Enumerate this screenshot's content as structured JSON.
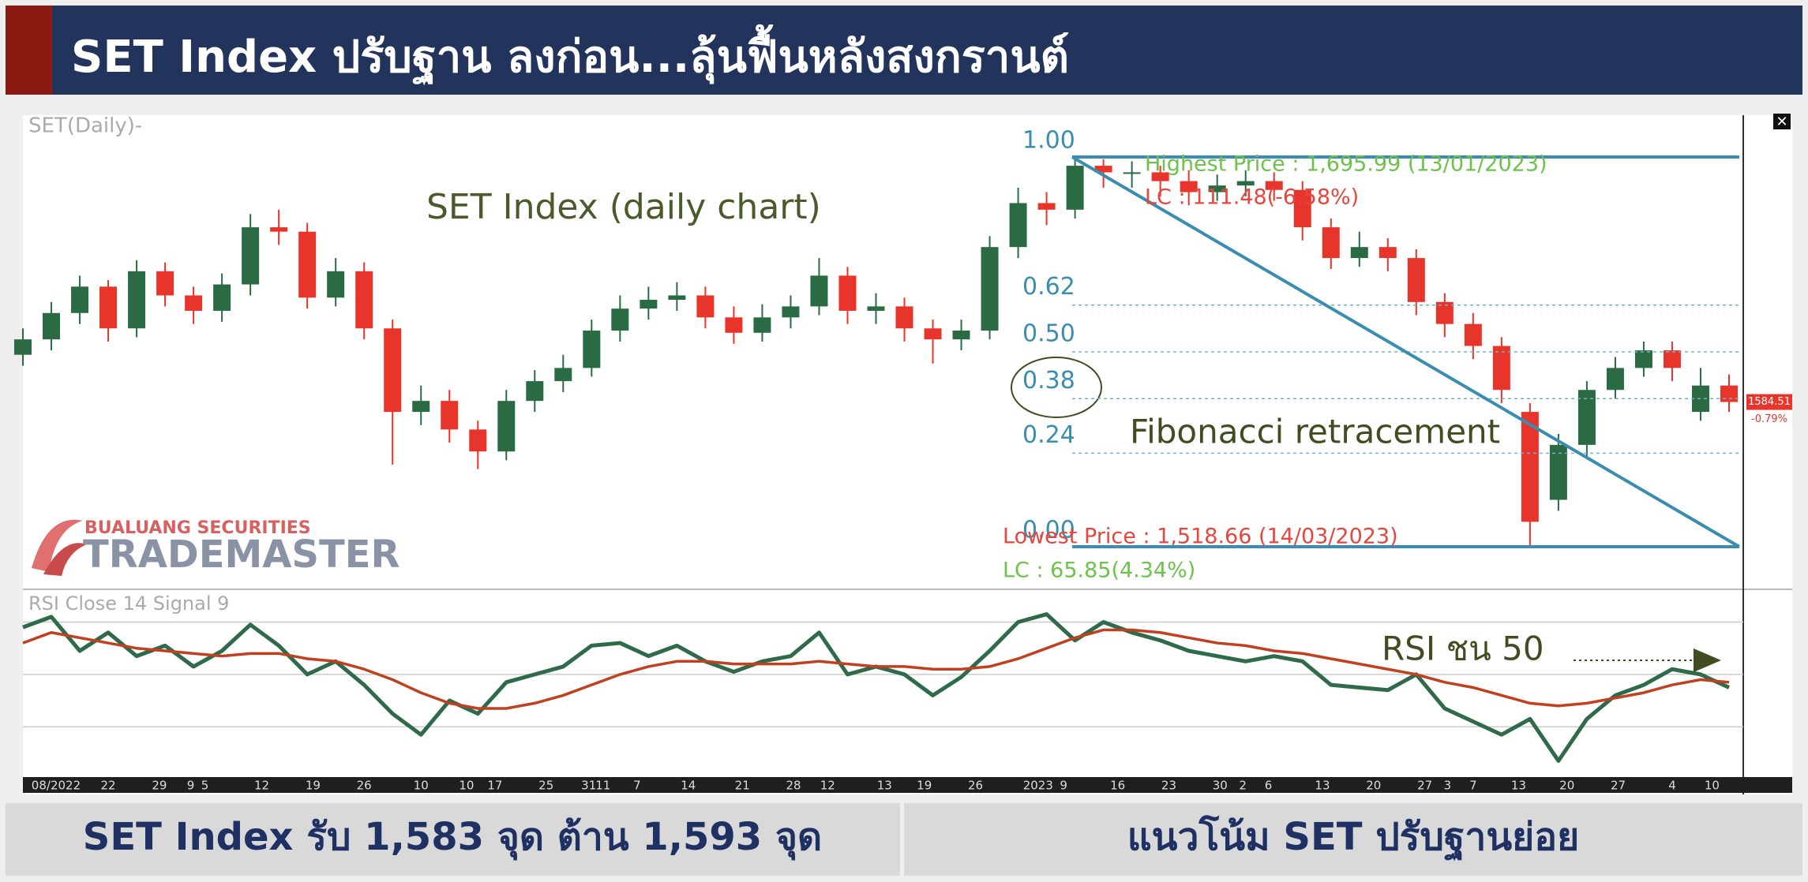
{
  "header": {
    "title": "SET Index ปรับฐาน ลงก่อน...ลุ้นฟื้นหลังสงกรานต์"
  },
  "chart_data": [
    {
      "type": "candlestick",
      "title": "SET(Daily)-",
      "annotation": "SET Index (daily chart)",
      "fib_title": "Fibonacci retracement",
      "up_color": "#2a6b43",
      "down_color": "#e8352b",
      "ylim": [
        1500,
        1715
      ],
      "highest": {
        "value": 1695.99,
        "label": "Highest Price : 1,695.99 (13/01/2023)"
      },
      "highest_lc": "LC : 111.48(-6.58%)",
      "lowest": {
        "value": 1518.66,
        "label": "Lowest Price : 1,518.66 (14/03/2023)"
      },
      "lowest_lc": "LC : 65.85(4.34%)",
      "fib_levels": [
        {
          "value": 1,
          "label": "1.00"
        },
        {
          "value": 0.62,
          "label": "0.62"
        },
        {
          "value": 0.5,
          "label": "0.50"
        },
        {
          "value": 0.38,
          "label": "0.38"
        },
        {
          "value": 0.24,
          "label": "0.24"
        },
        {
          "value": 0,
          "label": "0.00"
        }
      ],
      "last_price": 1584.51,
      "last_change": {
        "value": -0.79,
        "label": "-0.79%"
      },
      "candles": [
        [
          1606,
          1618,
          1601,
          1613
        ],
        [
          1613,
          1630,
          1608,
          1625
        ],
        [
          1625,
          1642,
          1620,
          1637
        ],
        [
          1637,
          1640,
          1612,
          1618
        ],
        [
          1618,
          1649,
          1614,
          1644
        ],
        [
          1644,
          1648,
          1628,
          1633
        ],
        [
          1633,
          1637,
          1620,
          1626
        ],
        [
          1626,
          1643,
          1621,
          1638
        ],
        [
          1638,
          1670,
          1633,
          1664
        ],
        [
          1664,
          1672,
          1656,
          1662
        ],
        [
          1662,
          1666,
          1627,
          1632
        ],
        [
          1632,
          1650,
          1628,
          1644
        ],
        [
          1644,
          1648,
          1613,
          1618
        ],
        [
          1618,
          1622,
          1556,
          1580
        ],
        [
          1580,
          1592,
          1574,
          1585
        ],
        [
          1585,
          1590,
          1566,
          1572
        ],
        [
          1572,
          1576,
          1554,
          1562
        ],
        [
          1562,
          1590,
          1558,
          1585
        ],
        [
          1585,
          1599,
          1580,
          1594
        ],
        [
          1594,
          1606,
          1589,
          1600
        ],
        [
          1600,
          1622,
          1596,
          1617
        ],
        [
          1617,
          1633,
          1612,
          1627
        ],
        [
          1627,
          1637,
          1622,
          1631
        ],
        [
          1631,
          1639,
          1626,
          1633
        ],
        [
          1633,
          1637,
          1618,
          1623
        ],
        [
          1623,
          1628,
          1611,
          1616
        ],
        [
          1616,
          1629,
          1612,
          1623
        ],
        [
          1623,
          1633,
          1618,
          1628
        ],
        [
          1628,
          1650,
          1624,
          1642
        ],
        [
          1642,
          1646,
          1620,
          1626
        ],
        [
          1626,
          1634,
          1620,
          1628
        ],
        [
          1628,
          1632,
          1612,
          1618
        ],
        [
          1618,
          1622,
          1602,
          1613
        ],
        [
          1613,
          1622,
          1608,
          1617
        ],
        [
          1617,
          1660,
          1613,
          1655
        ],
        [
          1655,
          1682,
          1650,
          1675
        ],
        [
          1675,
          1680,
          1665,
          1672
        ],
        [
          1672,
          1695.99,
          1668,
          1692
        ],
        [
          1692,
          1695,
          1682,
          1689
        ],
        [
          1689,
          1694,
          1682,
          1689
        ],
        [
          1689,
          1692,
          1678,
          1685
        ],
        [
          1685,
          1690,
          1674,
          1680
        ],
        [
          1680,
          1688,
          1676,
          1683
        ],
        [
          1683,
          1690,
          1678,
          1685
        ],
        [
          1685,
          1689,
          1676,
          1681
        ],
        [
          1681,
          1685,
          1658,
          1664
        ],
        [
          1664,
          1668,
          1645,
          1650
        ],
        [
          1650,
          1662,
          1646,
          1655
        ],
        [
          1655,
          1659,
          1644,
          1650
        ],
        [
          1650,
          1654,
          1624,
          1630
        ],
        [
          1630,
          1634,
          1614,
          1620
        ],
        [
          1620,
          1625,
          1604,
          1610
        ],
        [
          1610,
          1614,
          1584,
          1590
        ],
        [
          1580,
          1584,
          1518.66,
          1530
        ],
        [
          1540,
          1570,
          1535,
          1565
        ],
        [
          1565,
          1594,
          1560,
          1590
        ],
        [
          1590,
          1605,
          1586,
          1600
        ],
        [
          1600,
          1612,
          1596,
          1608
        ],
        [
          1608,
          1612,
          1594,
          1600
        ],
        [
          1580,
          1600,
          1576,
          1592
        ],
        [
          1592,
          1597,
          1580,
          1584.51
        ]
      ],
      "xticks": [
        {
          "value": 0.3,
          "label": "08/2022"
        },
        {
          "value": 3,
          "label": "22"
        },
        {
          "value": 4.8,
          "label": "29"
        },
        {
          "value": 5.9,
          "label": "9"
        },
        {
          "value": 6.4,
          "label": "5"
        },
        {
          "value": 8.4,
          "label": "12"
        },
        {
          "value": 10.2,
          "label": "19"
        },
        {
          "value": 12,
          "label": "26"
        },
        {
          "value": 14,
          "label": "10"
        },
        {
          "value": 15.6,
          "label": "10"
        },
        {
          "value": 16.6,
          "label": "17"
        },
        {
          "value": 18.4,
          "label": "25"
        },
        {
          "value": 19.9,
          "label": "31"
        },
        {
          "value": 20.4,
          "label": "11"
        },
        {
          "value": 21.6,
          "label": "7"
        },
        {
          "value": 23.4,
          "label": "14"
        },
        {
          "value": 25.3,
          "label": "21"
        },
        {
          "value": 27.1,
          "label": "28"
        },
        {
          "value": 28.3,
          "label": "12"
        },
        {
          "value": 30.3,
          "label": "13"
        },
        {
          "value": 31.7,
          "label": "19"
        },
        {
          "value": 33.5,
          "label": "26"
        },
        {
          "value": 35.7,
          "label": "2023"
        },
        {
          "value": 36.6,
          "label": "9"
        },
        {
          "value": 38.5,
          "label": "16"
        },
        {
          "value": 40.3,
          "label": "23"
        },
        {
          "value": 42.1,
          "label": "30"
        },
        {
          "value": 42.9,
          "label": "2"
        },
        {
          "value": 43.8,
          "label": "6"
        },
        {
          "value": 45.7,
          "label": "13"
        },
        {
          "value": 47.5,
          "label": "20"
        },
        {
          "value": 49.3,
          "label": "27"
        },
        {
          "value": 50.1,
          "label": "3"
        },
        {
          "value": 51,
          "label": "7"
        },
        {
          "value": 52.6,
          "label": "13"
        },
        {
          "value": 54.3,
          "label": "20"
        },
        {
          "value": 56.1,
          "label": "27"
        },
        {
          "value": 58,
          "label": "4"
        },
        {
          "value": 59.4,
          "label": "10"
        }
      ]
    },
    {
      "type": "line",
      "title": "RSI Close 14 Signal 9",
      "annotation": "RSI ชน 50",
      "ylim": [
        12,
        81
      ],
      "hlines": [
        30,
        50,
        70
      ],
      "series": [
        {
          "color": "#2f6b4a",
          "values": [
            68,
            72,
            59,
            66,
            57,
            61,
            53,
            59,
            69,
            61,
            50,
            55,
            46,
            35,
            27,
            40,
            35,
            47,
            50,
            53,
            61,
            62,
            57,
            61,
            55,
            51,
            55,
            57,
            66,
            50,
            53,
            50,
            42,
            49,
            59,
            70,
            73,
            63,
            70,
            66,
            63,
            59,
            57,
            55,
            57,
            55,
            46,
            45,
            44,
            50,
            37,
            32,
            27,
            33,
            17,
            33,
            42,
            46,
            52,
            50,
            45
          ]
        },
        {
          "color": "#c0401f",
          "values": [
            62,
            66,
            64,
            62,
            60,
            59,
            58,
            57,
            58,
            58,
            56,
            55,
            52,
            48,
            43,
            39,
            37,
            37,
            39,
            42,
            46,
            50,
            53,
            55,
            55,
            54,
            54,
            54,
            55,
            54,
            53,
            53,
            52,
            52,
            53,
            56,
            60,
            64,
            67,
            67,
            66,
            64,
            62,
            61,
            59,
            58,
            56,
            54,
            52,
            50,
            47,
            45,
            42,
            39,
            38,
            39,
            41,
            43,
            46,
            48,
            47
          ]
        }
      ]
    }
  ],
  "logo": {
    "company": "BUALUANG SECURITIES",
    "product": "TRADEMASTER"
  },
  "footer": {
    "left": "SET Index รับ 1,583 จุด ต้าน 1,593 จุด",
    "right": "แนวโน้ม SET ปรับฐานย่อย"
  }
}
